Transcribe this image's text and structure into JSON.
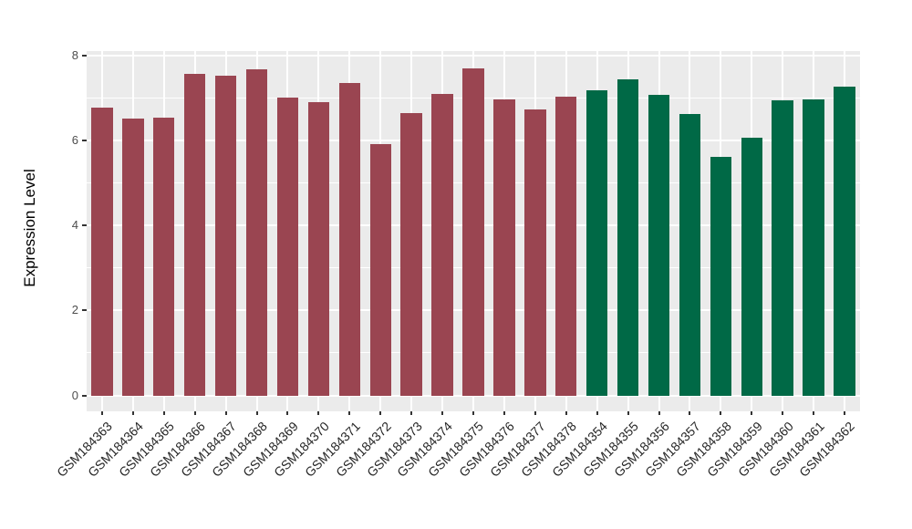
{
  "figure": {
    "background": "#ffffff",
    "panel_background": "#ebebeb",
    "gridline_color": "#ffffff",
    "tick_mark_color": "#333333",
    "axis_text_color": "#4d4d4d",
    "x_axis_text_color": "#262626",
    "axis_title_color": "#000000"
  },
  "chart_data": {
    "type": "bar",
    "title": "",
    "xlabel": "",
    "ylabel": "Expression Level",
    "ylim": [
      0,
      8
    ],
    "yticks": [
      0,
      2,
      4,
      6,
      8
    ],
    "minor_gridlines": [
      1,
      3,
      5,
      7
    ],
    "grid": "major and minor horizontal white lines, vertical white line at each bar center, on gray panel",
    "legend_position": "none",
    "x_tick_rotation_deg": 45,
    "categories": [
      "GSM184363",
      "GSM184364",
      "GSM184365",
      "GSM184366",
      "GSM184367",
      "GSM184368",
      "GSM184369",
      "GSM184370",
      "GSM184371",
      "GSM184372",
      "GSM184373",
      "GSM184374",
      "GSM184375",
      "GSM184376",
      "GSM184377",
      "GSM184378",
      "GSM184354",
      "GSM184355",
      "GSM184356",
      "GSM184357",
      "GSM184358",
      "GSM184359",
      "GSM184360",
      "GSM184361",
      "GSM184362"
    ],
    "values": [
      6.78,
      6.52,
      6.55,
      7.57,
      7.52,
      7.68,
      7.01,
      6.9,
      7.35,
      5.92,
      6.64,
      7.1,
      7.7,
      6.97,
      6.73,
      7.03,
      7.18,
      7.45,
      7.07,
      6.62,
      5.62,
      6.07,
      6.94,
      6.96,
      7.28
    ],
    "bar_colors": [
      "#9a4551",
      "#9a4551",
      "#9a4551",
      "#9a4551",
      "#9a4551",
      "#9a4551",
      "#9a4551",
      "#9a4551",
      "#9a4551",
      "#9a4551",
      "#9a4551",
      "#9a4551",
      "#9a4551",
      "#9a4551",
      "#9a4551",
      "#9a4551",
      "#006946",
      "#006946",
      "#006946",
      "#006946",
      "#006946",
      "#006946",
      "#006946",
      "#006946",
      "#006946"
    ],
    "group_colors": {
      "left_group": "#9a4551",
      "right_group": "#006946"
    }
  }
}
